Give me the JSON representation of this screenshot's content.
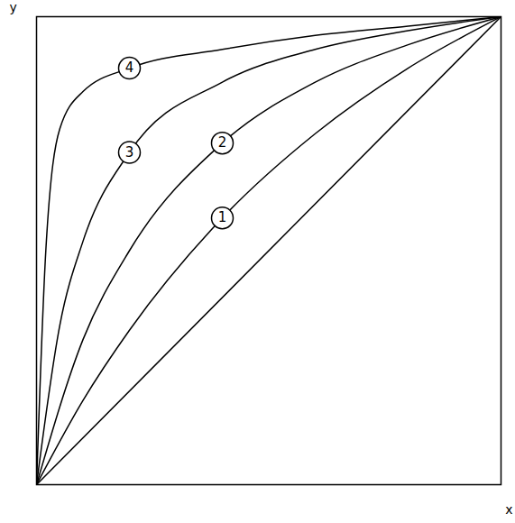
{
  "chart_data": {
    "type": "line",
    "x_label": "x",
    "y_label": "y",
    "xlim": [
      0,
      1
    ],
    "ylim": [
      0,
      1
    ],
    "xticks": [],
    "yticks": [],
    "tick_labels": false,
    "grid": false,
    "color": "#000000",
    "line_style": "solid",
    "series": [
      {
        "x": [
          0,
          1
        ],
        "values": [
          0,
          1
        ]
      },
      {
        "name": "1",
        "x": [
          0,
          0.1,
          0.2,
          0.4,
          0.6,
          0.8,
          1
        ],
        "values": [
          0,
          0.18,
          0.33,
          0.57,
          0.75,
          0.89,
          1
        ]
      },
      {
        "name": "2",
        "x": [
          0,
          0.1,
          0.2,
          0.4,
          0.6,
          0.8,
          1
        ],
        "values": [
          0,
          0.31,
          0.5,
          0.73,
          0.86,
          0.94,
          1
        ]
      },
      {
        "name": "3",
        "x": [
          0,
          0.05,
          0.1,
          0.2,
          0.4,
          0.6,
          0.8,
          1
        ],
        "values": [
          0,
          0.34,
          0.52,
          0.71,
          0.86,
          0.93,
          0.97,
          1
        ]
      },
      {
        "name": "4",
        "x": [
          0,
          0.02,
          0.05,
          0.1,
          0.2,
          0.4,
          0.6,
          0.8,
          1
        ],
        "values": [
          0,
          0.5,
          0.76,
          0.84,
          0.89,
          0.93,
          0.96,
          0.98,
          1
        ]
      }
    ]
  }
}
